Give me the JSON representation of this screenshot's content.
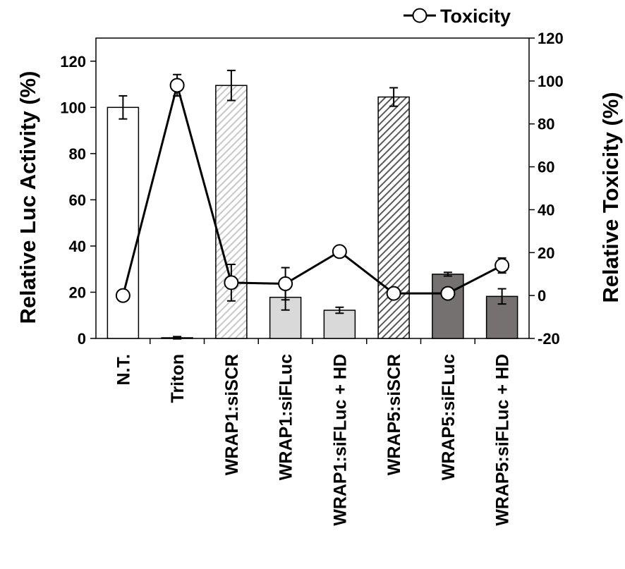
{
  "chart_data": {
    "type": "bar",
    "categories": [
      "N.T.",
      "Triton",
      "WRAP1:siSCR",
      "WRAP1:siFLuc",
      "WRAP1:siFLuc + HD",
      "WRAP5:siSCR",
      "WRAP5:siFLuc",
      "WRAP5:siFLuc + HD"
    ],
    "bars": {
      "values": [
        100,
        0.3,
        109.5,
        17.8,
        12.2,
        104.5,
        27.8,
        18.2
      ],
      "errors": [
        5,
        0.5,
        6.5,
        5.5,
        1.3,
        4,
        0.8,
        3.3
      ],
      "fills": [
        "white",
        "white",
        "light-hatch",
        "light-gray",
        "light-gray",
        "dark-hatch",
        "dark-gray",
        "dark-gray"
      ]
    },
    "toxicity": {
      "name": "Toxicity",
      "values": [
        0,
        98,
        6,
        5.5,
        20.5,
        1,
        1,
        14
      ],
      "errors": [
        0,
        5,
        8.5,
        7.5,
        0,
        0,
        0,
        3.5
      ]
    },
    "ylabel": "Relative Luc Activity (%)",
    "ylabel_right": "Relative Toxicity (%)",
    "ylim": [
      0,
      130
    ],
    "ylim_right": [
      -20,
      120
    ],
    "yticks": [
      0,
      20,
      40,
      60,
      80,
      100,
      120
    ],
    "yticks_right": [
      -20,
      0,
      20,
      40,
      60,
      80,
      100,
      120
    ],
    "legend_position": "top-right",
    "grid": false,
    "colors": {
      "light_gray": "#d9d9d9",
      "dark_gray": "#767171",
      "hatch_light": "#c8c8c8",
      "hatch_dark": "#595959",
      "line": "#000000"
    }
  }
}
